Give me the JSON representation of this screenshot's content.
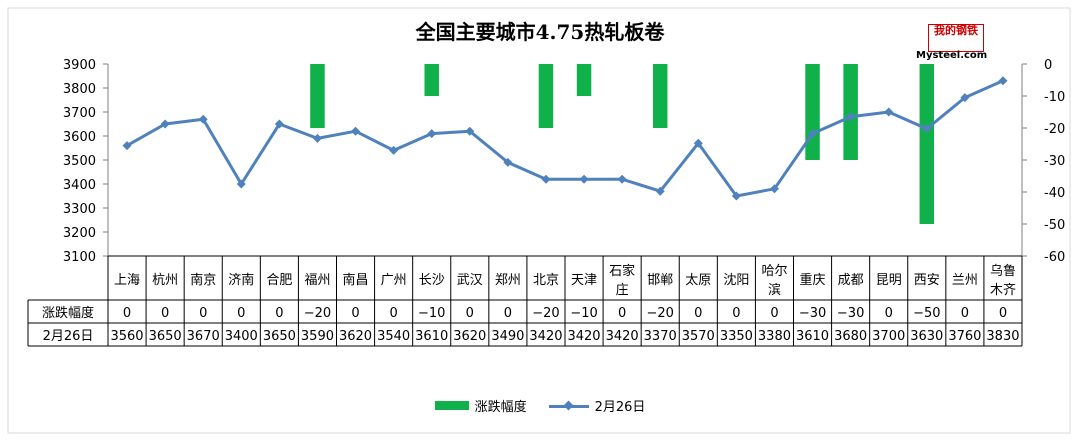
{
  "colors": {
    "bar": "#10b04a",
    "line": "#4f81bd",
    "grid": "#d9d9d9",
    "axis": "#808080"
  },
  "logo": {
    "badge_text": "我的钢铁",
    "site": "Mysteel.com"
  },
  "chart_data": {
    "type": "bar+line",
    "title": "全国主要城市4.75热轧板卷",
    "categories": [
      "上海",
      "杭州",
      "南京",
      "济南",
      "合肥",
      "福州",
      "南昌",
      "广州",
      "长沙",
      "武汉",
      "郑州",
      "北京",
      "天津",
      "石家庄",
      "邯郸",
      "太原",
      "沈阳",
      "哈尔滨",
      "重庆",
      "成都",
      "昆明",
      "西安",
      "兰州",
      "乌鲁木齐"
    ],
    "category_lines": [
      [
        "上海"
      ],
      [
        "杭州"
      ],
      [
        "南京"
      ],
      [
        "济南"
      ],
      [
        "合肥"
      ],
      [
        "福州"
      ],
      [
        "南昌"
      ],
      [
        "广州"
      ],
      [
        "长沙"
      ],
      [
        "武汉"
      ],
      [
        "郑州"
      ],
      [
        "北京"
      ],
      [
        "天津"
      ],
      [
        "石家",
        "庄"
      ],
      [
        "邯郸"
      ],
      [
        "太原"
      ],
      [
        "沈阳"
      ],
      [
        "哈尔",
        "滨"
      ],
      [
        "重庆"
      ],
      [
        "成都"
      ],
      [
        "昆明"
      ],
      [
        "西安"
      ],
      [
        "兰州"
      ],
      [
        "乌鲁",
        "木齐"
      ]
    ],
    "series": [
      {
        "name": "涨跌幅度",
        "type": "bar",
        "axis": "right",
        "values": [
          0,
          0,
          0,
          0,
          0,
          -20,
          0,
          0,
          -10,
          0,
          0,
          -20,
          -10,
          0,
          -20,
          0,
          0,
          0,
          -30,
          -30,
          0,
          -50,
          0,
          0
        ]
      },
      {
        "name": "2月26日",
        "type": "line",
        "axis": "left",
        "values": [
          3560,
          3650,
          3670,
          3400,
          3650,
          3590,
          3620,
          3540,
          3610,
          3620,
          3490,
          3420,
          3420,
          3420,
          3370,
          3570,
          3350,
          3380,
          3610,
          3680,
          3700,
          3630,
          3760,
          3830
        ]
      }
    ],
    "table_rows": [
      {
        "label": "涨跌幅度",
        "values": [
          "0",
          "0",
          "0",
          "0",
          "0",
          "−20",
          "0",
          "0",
          "−10",
          "0",
          "0",
          "−20",
          "−10",
          "0",
          "−20",
          "0",
          "0",
          "0",
          "−30",
          "−30",
          "0",
          "−50",
          "0",
          "0"
        ]
      },
      {
        "label": "2月26日",
        "values": [
          "3560",
          "3650",
          "3670",
          "3400",
          "3650",
          "3590",
          "3620",
          "3540",
          "3610",
          "3620",
          "3490",
          "3420",
          "3420",
          "3420",
          "3370",
          "3570",
          "3350",
          "3380",
          "3610",
          "3680",
          "3700",
          "3630",
          "3760",
          "3830"
        ]
      }
    ],
    "y_left": {
      "min": 3100,
      "max": 3900,
      "step": 100
    },
    "y_right": {
      "min": -60,
      "max": 0,
      "step": 10
    },
    "legend": [
      "涨跌幅度",
      "2月26日"
    ],
    "legend_position": "bottom",
    "grid": false
  }
}
